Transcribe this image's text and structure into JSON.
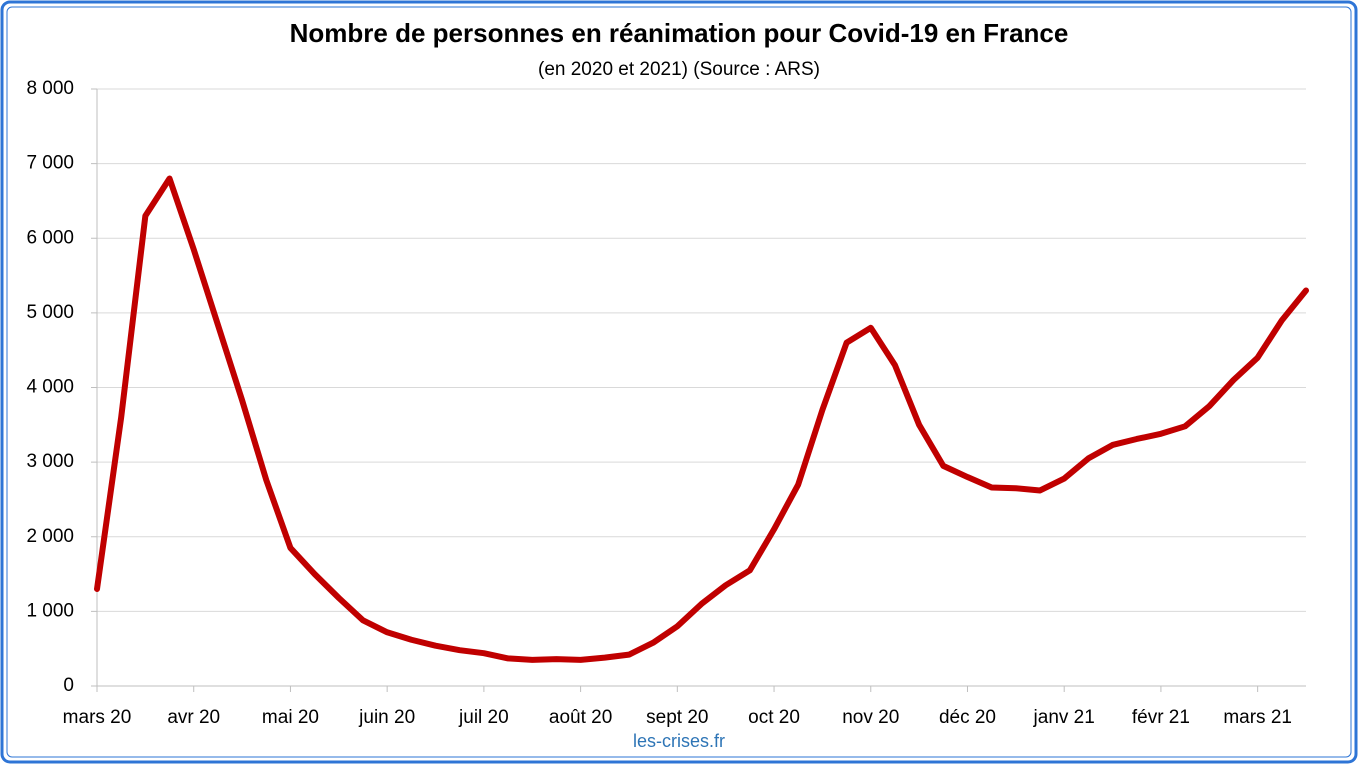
{
  "chart_data": {
    "type": "line",
    "title": "Nombre de personnes en réanimation pour Covid-19 en France",
    "subtitle": "(en 2020 et 2021) (Source : ARS)",
    "annotation": "les-crises.fr",
    "categories": [
      "mars 20",
      null,
      null,
      null,
      "avr 20",
      null,
      null,
      null,
      "mai 20",
      null,
      null,
      null,
      "juin 20",
      null,
      null,
      null,
      "juil 20",
      null,
      null,
      null,
      "août 20",
      null,
      null,
      null,
      "sept 20",
      null,
      null,
      null,
      "oct 20",
      null,
      null,
      null,
      "nov 20",
      null,
      null,
      null,
      "déc 20",
      null,
      null,
      null,
      "janv 21",
      null,
      null,
      null,
      "févr 21",
      null,
      null,
      null,
      "mars 21",
      null,
      null
    ],
    "series": [
      {
        "name": "Réanimation",
        "color": "#c00000",
        "values": [
          1300,
          3600,
          6300,
          6800,
          5850,
          4840,
          3830,
          2760,
          1850,
          1500,
          1180,
          880,
          720,
          620,
          540,
          480,
          440,
          370,
          350,
          360,
          350,
          380,
          420,
          580,
          800,
          1100,
          1350,
          1550,
          2100,
          2700,
          3700,
          4600,
          4800,
          4300,
          3500,
          2950,
          2800,
          2660,
          2650,
          2620,
          2780,
          3050,
          3230,
          3310,
          3380,
          3480,
          3750,
          4100,
          4400,
          4900,
          5300
        ]
      }
    ],
    "ylim": [
      0,
      8000
    ],
    "yticks": [
      0,
      {
        "value": 1000,
        "label": "1 000"
      },
      {
        "value": 2000,
        "label": "2 000"
      },
      {
        "value": 3000,
        "label": "3 000"
      },
      {
        "value": 4000,
        "label": "4 000"
      },
      {
        "value": 5000,
        "label": "5 000"
      },
      {
        "value": 6000,
        "label": "6 000"
      },
      {
        "value": 7000,
        "label": "7 000"
      },
      {
        "value": 8000,
        "label": "8 000"
      }
    ],
    "grid": true
  }
}
